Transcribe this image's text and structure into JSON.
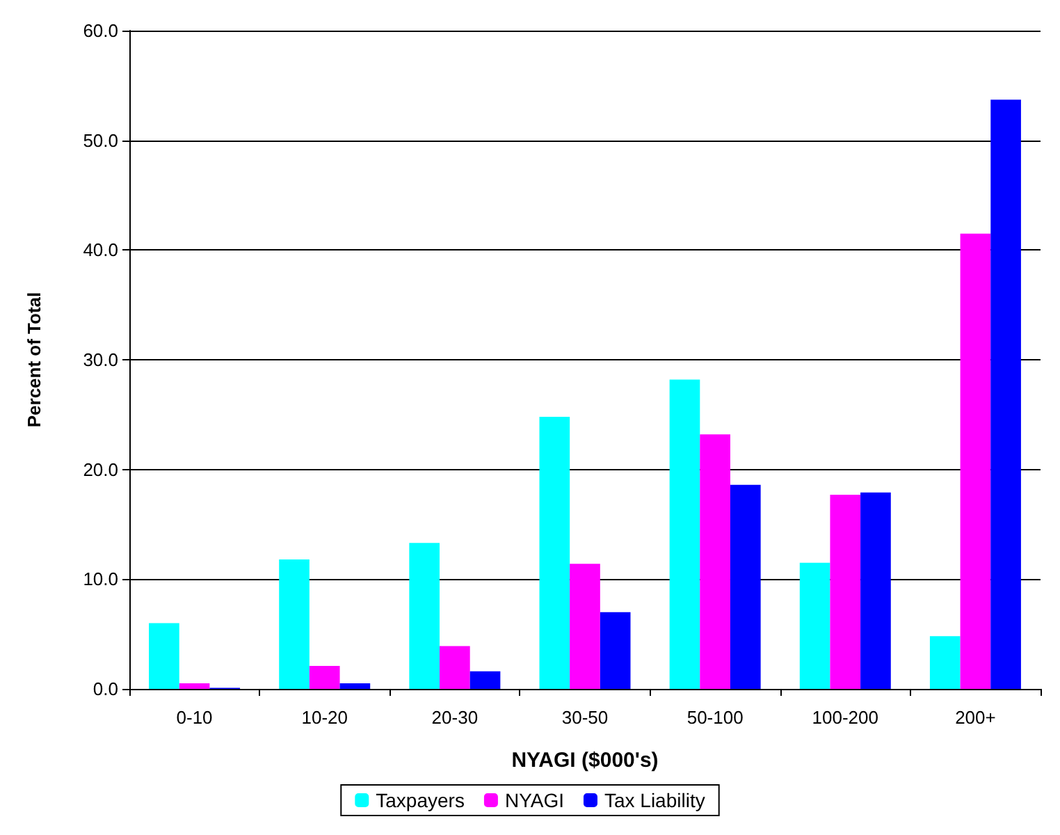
{
  "chart_data": {
    "type": "bar",
    "xlabel": "NYAGI ($000's)",
    "ylabel": "Percent of Total",
    "categories": [
      "0-10",
      "10-20",
      "20-30",
      "30-50",
      "50-100",
      "100-200",
      "200+"
    ],
    "series": [
      {
        "name": "Taxpayers",
        "color": "#00ffff",
        "values": [
          6.0,
          11.8,
          13.3,
          24.8,
          28.2,
          11.5,
          4.8
        ]
      },
      {
        "name": "NYAGI",
        "color": "#ff00ff",
        "values": [
          0.5,
          2.1,
          3.9,
          11.4,
          23.2,
          17.7,
          41.5
        ]
      },
      {
        "name": "Tax Liability",
        "color": "#0000ff",
        "values": [
          0.1,
          0.5,
          1.6,
          7.0,
          18.6,
          17.9,
          53.7
        ]
      }
    ],
    "ylim": [
      0,
      60
    ],
    "yticks": [
      {
        "value": 0,
        "label": "0.0"
      },
      {
        "value": 10,
        "label": "10.0"
      },
      {
        "value": 20,
        "label": "20.0"
      },
      {
        "value": 30,
        "label": "30.0"
      },
      {
        "value": 40,
        "label": "40.0"
      },
      {
        "value": 50,
        "label": "50.0"
      },
      {
        "value": 60,
        "label": "60.0"
      }
    ],
    "grid": "y",
    "legend": "bottom"
  }
}
